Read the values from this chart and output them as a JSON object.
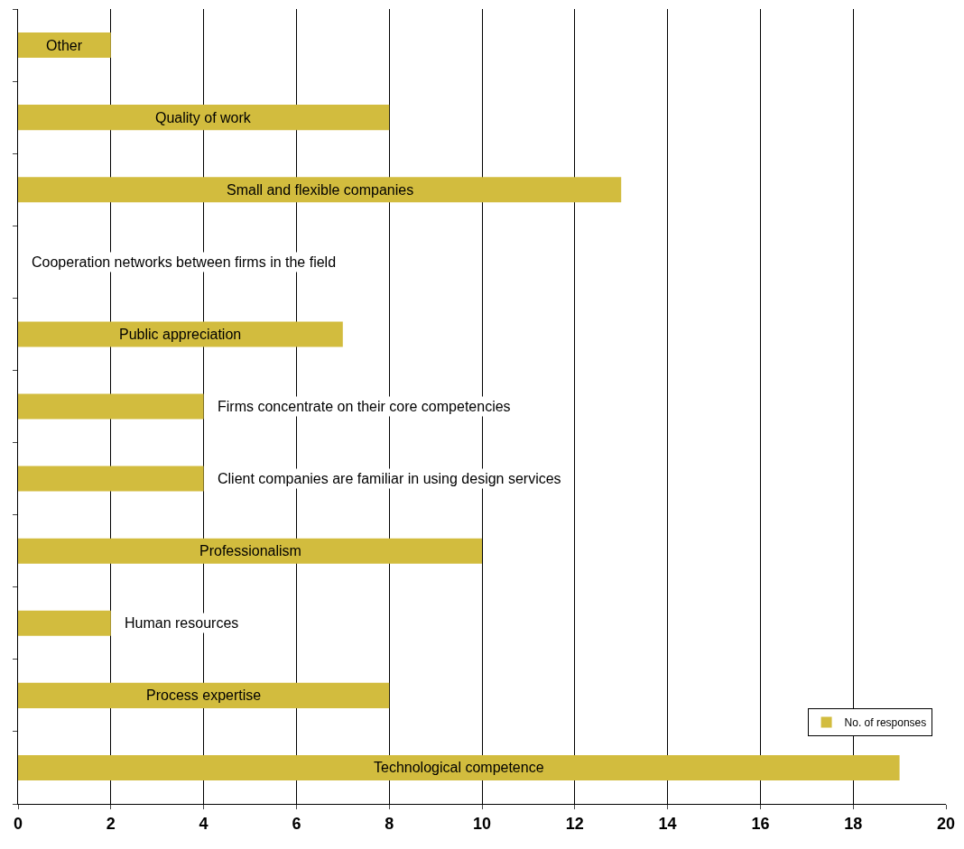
{
  "chart_data": {
    "type": "bar",
    "orientation": "horizontal",
    "categories": [
      "Other",
      "Quality of work",
      "Small and flexible companies",
      "Cooperation networks between firms in the field",
      "Public appreciation",
      "Firms concentrate on their core competencies",
      "Client companies are familiar in using design services",
      "Professionalism",
      "Human resources",
      "Process expertise",
      "Technological competence"
    ],
    "series": [
      {
        "name": "No. of responses",
        "color": "#d2bc3e",
        "values": [
          2,
          8,
          13,
          0,
          7,
          4,
          4,
          10,
          2,
          8,
          19
        ]
      }
    ],
    "xlim": [
      0,
      20
    ],
    "xticks": [
      0,
      2,
      4,
      6,
      8,
      10,
      12,
      14,
      16,
      18,
      20
    ],
    "grid": "x",
    "legend": "bottom right",
    "tick_labels": "x"
  }
}
